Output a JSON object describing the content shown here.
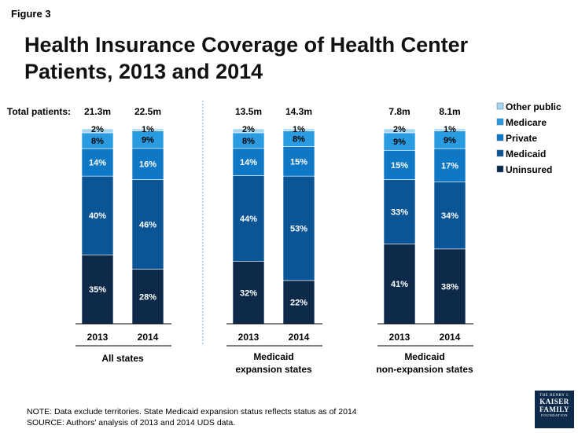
{
  "figure_label": "Figure 3",
  "title": "Health Insurance Coverage of Health Center Patients, 2013 and 2014",
  "notes": {
    "note": "NOTE: Data exclude territories. State Medicaid expansion status reflects status as of 2014",
    "source": "SOURCE: Authors’ analysis of 2013 and 2014 UDS data."
  },
  "logo": {
    "line1": "THE HENRY J.",
    "line2": "KAISER",
    "line3": "FAMILY",
    "line4": "FOUNDATION"
  },
  "colors": {
    "Uninsured": "#0c2949",
    "Medicaid": "#0b5597",
    "Private": "#0f78c6",
    "Medicare": "#2a9be0",
    "Other public": "#a7d7ef"
  },
  "chart_data": {
    "type": "bar",
    "stacked": true,
    "total_label": "Total patients:",
    "legend_position": "top-right",
    "legend": [
      "Other public",
      "Medicare",
      "Private",
      "Medicaid",
      "Uninsured"
    ],
    "groups": [
      {
        "label": "All states",
        "bars": [
          {
            "year": "2013",
            "total": "21.3m",
            "values": {
              "Uninsured": 35,
              "Medicaid": 40,
              "Private": 14,
              "Medicare": 8,
              "Other public": 2
            }
          },
          {
            "year": "2014",
            "total": "22.5m",
            "values": {
              "Uninsured": 28,
              "Medicaid": 46,
              "Private": 16,
              "Medicare": 9,
              "Other public": 1
            }
          }
        ]
      },
      {
        "label": "Medicaid\nexpansion states",
        "bars": [
          {
            "year": "2013",
            "total": "13.5m",
            "values": {
              "Uninsured": 32,
              "Medicaid": 44,
              "Private": 14,
              "Medicare": 8,
              "Other public": 2
            }
          },
          {
            "year": "2014",
            "total": "14.3m",
            "values": {
              "Uninsured": 22,
              "Medicaid": 53,
              "Private": 15,
              "Medicare": 8,
              "Other public": 1
            }
          }
        ]
      },
      {
        "label": "Medicaid\nnon-expansion states",
        "bars": [
          {
            "year": "2013",
            "total": "7.8m",
            "values": {
              "Uninsured": 41,
              "Medicaid": 33,
              "Private": 15,
              "Medicare": 9,
              "Other public": 2
            }
          },
          {
            "year": "2014",
            "total": "8.1m",
            "values": {
              "Uninsured": 38,
              "Medicaid": 34,
              "Private": 17,
              "Medicare": 9,
              "Other public": 1
            }
          }
        ]
      }
    ],
    "series_order": [
      "Uninsured",
      "Medicaid",
      "Private",
      "Medicare",
      "Other public"
    ]
  }
}
